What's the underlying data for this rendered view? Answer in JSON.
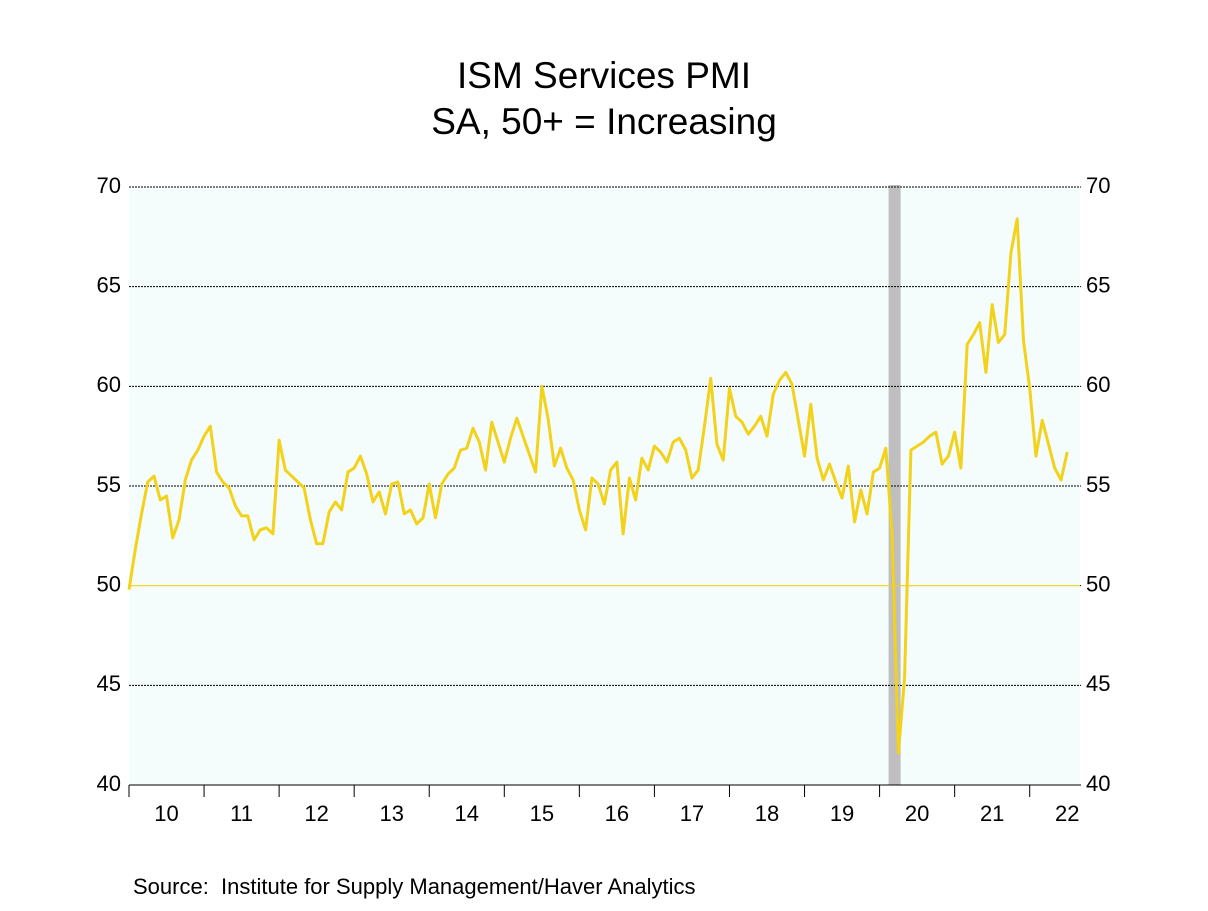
{
  "chart_data": {
    "type": "line",
    "title": "ISM Services PMI",
    "subtitle": "SA, 50+ = Increasing",
    "source": "Source:  Institute for Supply Management/Haver Analytics",
    "x": [
      2010.0,
      2010.083,
      2010.167,
      2010.25,
      2010.333,
      2010.417,
      2010.5,
      2010.583,
      2010.667,
      2010.75,
      2010.833,
      2010.917,
      2011.0,
      2011.083,
      2011.167,
      2011.25,
      2011.333,
      2011.417,
      2011.5,
      2011.583,
      2011.667,
      2011.75,
      2011.833,
      2011.917,
      2012.0,
      2012.083,
      2012.167,
      2012.25,
      2012.333,
      2012.417,
      2012.5,
      2012.583,
      2012.667,
      2012.75,
      2012.833,
      2012.917,
      2013.0,
      2013.083,
      2013.167,
      2013.25,
      2013.333,
      2013.417,
      2013.5,
      2013.583,
      2013.667,
      2013.75,
      2013.833,
      2013.917,
      2014.0,
      2014.083,
      2014.167,
      2014.25,
      2014.333,
      2014.417,
      2014.5,
      2014.583,
      2014.667,
      2014.75,
      2014.833,
      2014.917,
      2015.0,
      2015.083,
      2015.167,
      2015.25,
      2015.333,
      2015.417,
      2015.5,
      2015.583,
      2015.667,
      2015.75,
      2015.833,
      2015.917,
      2016.0,
      2016.083,
      2016.167,
      2016.25,
      2016.333,
      2016.417,
      2016.5,
      2016.583,
      2016.667,
      2016.75,
      2016.833,
      2016.917,
      2017.0,
      2017.083,
      2017.167,
      2017.25,
      2017.333,
      2017.417,
      2017.5,
      2017.583,
      2017.667,
      2017.75,
      2017.833,
      2017.917,
      2018.0,
      2018.083,
      2018.167,
      2018.25,
      2018.333,
      2018.417,
      2018.5,
      2018.583,
      2018.667,
      2018.75,
      2018.833,
      2018.917,
      2019.0,
      2019.083,
      2019.167,
      2019.25,
      2019.333,
      2019.417,
      2019.5,
      2019.583,
      2019.667,
      2019.75,
      2019.833,
      2019.917,
      2020.0,
      2020.083,
      2020.167,
      2020.25,
      2020.333,
      2020.417,
      2020.5,
      2020.583,
      2020.667,
      2020.75,
      2020.833,
      2020.917,
      2021.0,
      2021.083,
      2021.167,
      2021.25,
      2021.333,
      2021.417,
      2021.5,
      2021.583,
      2021.667,
      2021.75,
      2021.833,
      2021.917,
      2022.0,
      2022.083,
      2022.167,
      2022.25,
      2022.333,
      2022.417,
      2022.5
    ],
    "series": [
      {
        "name": "ISM Services PMI",
        "color": "#f2d21b",
        "values": [
          49.8,
          51.8,
          53.6,
          55.2,
          55.5,
          54.3,
          54.5,
          52.4,
          53.3,
          55.3,
          56.3,
          56.8,
          57.5,
          58.0,
          55.7,
          55.2,
          54.9,
          54.0,
          53.5,
          53.5,
          52.3,
          52.8,
          52.9,
          52.6,
          57.3,
          55.8,
          55.5,
          55.2,
          54.9,
          53.3,
          52.1,
          52.1,
          53.7,
          54.2,
          53.8,
          55.7,
          55.9,
          56.5,
          55.6,
          54.2,
          54.7,
          53.6,
          55.1,
          55.2,
          53.6,
          53.8,
          53.1,
          53.4,
          55.1,
          53.4,
          55.1,
          55.6,
          55.9,
          56.8,
          56.9,
          57.9,
          57.2,
          55.8,
          58.2,
          57.2,
          56.2,
          57.4,
          58.4,
          57.5,
          56.6,
          55.7,
          60.0,
          58.4,
          56.0,
          56.9,
          55.9,
          55.3,
          53.8,
          52.8,
          55.4,
          55.1,
          54.1,
          55.8,
          56.2,
          52.6,
          55.4,
          54.3,
          56.4,
          55.8,
          57.0,
          56.7,
          56.2,
          57.2,
          57.4,
          56.8,
          55.4,
          55.8,
          58.0,
          60.4,
          57.1,
          56.3,
          59.9,
          58.5,
          58.2,
          57.6,
          58.0,
          58.5,
          57.5,
          59.6,
          60.3,
          60.7,
          60.1,
          58.3,
          56.5,
          59.1,
          56.4,
          55.3,
          56.1,
          55.2,
          54.4,
          56.0,
          53.2,
          54.8,
          53.6,
          55.7,
          55.9,
          56.9,
          52.5,
          41.6,
          45.4,
          56.8,
          57.0,
          57.2,
          57.5,
          57.7,
          56.1,
          56.5,
          57.7,
          55.9,
          62.1,
          62.6,
          63.2,
          60.7,
          64.1,
          62.2,
          62.6,
          66.7,
          68.4,
          62.3,
          59.9,
          56.5,
          58.3,
          57.1,
          55.9,
          55.3,
          56.7
        ]
      }
    ],
    "xlim": [
      2010,
      2022.67
    ],
    "xticks": [
      {
        "value": 2010.5,
        "label": "10"
      },
      {
        "value": 2011.5,
        "label": "11"
      },
      {
        "value": 2012.5,
        "label": "12"
      },
      {
        "value": 2013.5,
        "label": "13"
      },
      {
        "value": 2014.5,
        "label": "14"
      },
      {
        "value": 2015.5,
        "label": "15"
      },
      {
        "value": 2016.5,
        "label": "16"
      },
      {
        "value": 2017.5,
        "label": "17"
      },
      {
        "value": 2018.5,
        "label": "18"
      },
      {
        "value": 2019.5,
        "label": "19"
      },
      {
        "value": 2020.5,
        "label": "20"
      },
      {
        "value": 2021.5,
        "label": "21"
      },
      {
        "value": 2022.5,
        "label": "22"
      }
    ],
    "ylim": [
      40,
      70
    ],
    "yticks": [
      40,
      45,
      50,
      55,
      60,
      65,
      70
    ],
    "y2lim": [
      40,
      70
    ],
    "y2ticks": [
      40,
      45,
      50,
      55,
      60,
      65,
      70
    ],
    "reference_line": 50,
    "reference_color": "#f2d21b",
    "shaded_period": [
      2020.12,
      2020.28
    ],
    "shade_color": "#bfbfbf",
    "grid": true,
    "background": "#f4fcfc"
  }
}
